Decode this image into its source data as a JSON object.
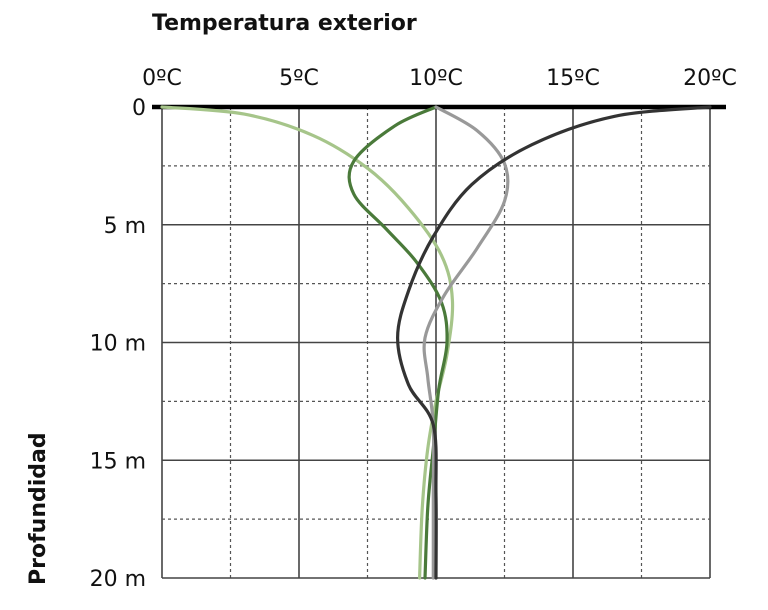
{
  "chart_data": {
    "type": "line",
    "title": "Temperatura exterior",
    "xlabel": "",
    "ylabel": "Profundidad",
    "x_ticks": [
      "0ºC",
      "5ºC",
      "10ºC",
      "15ºC",
      "20ºC"
    ],
    "y_ticks": [
      "0",
      "5 m",
      "10 m",
      "15 m",
      "20 m"
    ],
    "xlim": [
      0,
      20
    ],
    "ylim": [
      0,
      20
    ],
    "grid": true,
    "series": [
      {
        "color": "#a6c58a",
        "points": [
          [
            0,
            0
          ],
          [
            3,
            0.3
          ],
          [
            5.5,
            1.2
          ],
          [
            7.5,
            2.6
          ],
          [
            9,
            4.3
          ],
          [
            10.2,
            6.3
          ],
          [
            10.6,
            8.2
          ],
          [
            10.4,
            10.5
          ],
          [
            10.0,
            12.5
          ],
          [
            9.7,
            14.5
          ],
          [
            9.5,
            17
          ],
          [
            9.4,
            20
          ]
        ]
      },
      {
        "color": "#4a7a3a",
        "points": [
          [
            10,
            0
          ],
          [
            8.5,
            0.8
          ],
          [
            7.0,
            2.3
          ],
          [
            7.0,
            3.7
          ],
          [
            8.2,
            5.2
          ],
          [
            9.3,
            6.6
          ],
          [
            10.2,
            8.3
          ],
          [
            10.4,
            10.0
          ],
          [
            10.1,
            12.0
          ],
          [
            9.9,
            14.5
          ],
          [
            9.7,
            17
          ],
          [
            9.6,
            20
          ]
        ]
      },
      {
        "color": "#999999",
        "points": [
          [
            10,
            0
          ],
          [
            11.5,
            1.0
          ],
          [
            12.5,
            2.4
          ],
          [
            12.5,
            4.0
          ],
          [
            11.5,
            6.0
          ],
          [
            10.3,
            8.0
          ],
          [
            9.6,
            9.8
          ],
          [
            9.7,
            11.5
          ],
          [
            9.9,
            13.5
          ],
          [
            9.9,
            16.5
          ],
          [
            9.9,
            20
          ]
        ]
      },
      {
        "color": "#333333",
        "points": [
          [
            20,
            0
          ],
          [
            16.5,
            0.4
          ],
          [
            13.5,
            1.6
          ],
          [
            11.3,
            3.3
          ],
          [
            9.9,
            5.5
          ],
          [
            9.0,
            7.8
          ],
          [
            8.6,
            9.8
          ],
          [
            9.0,
            11.8
          ],
          [
            9.9,
            13.5
          ],
          [
            10.0,
            16.5
          ],
          [
            10.0,
            20
          ]
        ]
      }
    ]
  }
}
